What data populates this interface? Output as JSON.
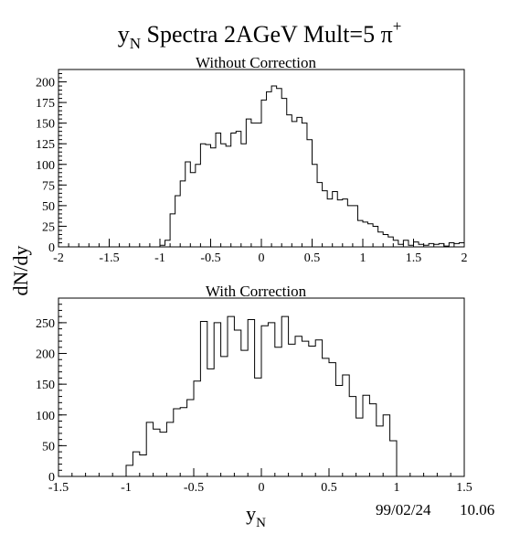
{
  "title": {
    "main": "y",
    "main_sub": "N",
    "main_rest": " Spectra 2AGeV Mult=5 π",
    "main_sup": "+"
  },
  "ylabel": "dN/dy",
  "xlabel": {
    "main": "y",
    "sub": "N"
  },
  "stamp": {
    "date": "99/02/24",
    "time": "10.06"
  },
  "chart_data": [
    {
      "type": "bar",
      "title": "Without Correction",
      "xlim": [
        -2,
        2
      ],
      "ylim": [
        0,
        215
      ],
      "xticks": [
        -2,
        -1.5,
        -1,
        -0.5,
        0,
        0.5,
        1,
        1.5,
        2
      ],
      "yticks": [
        0,
        25,
        50,
        75,
        100,
        125,
        150,
        175,
        200
      ],
      "bin_width": 0.05,
      "bins": [
        {
          "x": -1.0,
          "y": 2
        },
        {
          "x": -0.95,
          "y": 8
        },
        {
          "x": -0.9,
          "y": 40
        },
        {
          "x": -0.85,
          "y": 62
        },
        {
          "x": -0.8,
          "y": 80
        },
        {
          "x": -0.75,
          "y": 103
        },
        {
          "x": -0.7,
          "y": 90
        },
        {
          "x": -0.65,
          "y": 100
        },
        {
          "x": -0.6,
          "y": 125
        },
        {
          "x": -0.55,
          "y": 124
        },
        {
          "x": -0.5,
          "y": 120
        },
        {
          "x": -0.45,
          "y": 138
        },
        {
          "x": -0.4,
          "y": 125
        },
        {
          "x": -0.35,
          "y": 122
        },
        {
          "x": -0.3,
          "y": 138
        },
        {
          "x": -0.25,
          "y": 140
        },
        {
          "x": -0.2,
          "y": 125
        },
        {
          "x": -0.15,
          "y": 155
        },
        {
          "x": -0.1,
          "y": 150
        },
        {
          "x": -0.05,
          "y": 150
        },
        {
          "x": 0.0,
          "y": 178
        },
        {
          "x": 0.05,
          "y": 188
        },
        {
          "x": 0.1,
          "y": 195
        },
        {
          "x": 0.15,
          "y": 192
        },
        {
          "x": 0.2,
          "y": 180
        },
        {
          "x": 0.25,
          "y": 160
        },
        {
          "x": 0.3,
          "y": 152
        },
        {
          "x": 0.35,
          "y": 157
        },
        {
          "x": 0.4,
          "y": 150
        },
        {
          "x": 0.45,
          "y": 130
        },
        {
          "x": 0.5,
          "y": 100
        },
        {
          "x": 0.55,
          "y": 78
        },
        {
          "x": 0.6,
          "y": 68
        },
        {
          "x": 0.65,
          "y": 58
        },
        {
          "x": 0.7,
          "y": 67
        },
        {
          "x": 0.75,
          "y": 57
        },
        {
          "x": 0.8,
          "y": 58
        },
        {
          "x": 0.85,
          "y": 50
        },
        {
          "x": 0.9,
          "y": 50
        },
        {
          "x": 0.95,
          "y": 32
        },
        {
          "x": 1.0,
          "y": 30
        },
        {
          "x": 1.05,
          "y": 28
        },
        {
          "x": 1.1,
          "y": 25
        },
        {
          "x": 1.15,
          "y": 18
        },
        {
          "x": 1.2,
          "y": 15
        },
        {
          "x": 1.25,
          "y": 12
        },
        {
          "x": 1.3,
          "y": 8
        },
        {
          "x": 1.35,
          "y": 3
        },
        {
          "x": 1.4,
          "y": 8
        },
        {
          "x": 1.45,
          "y": 2
        },
        {
          "x": 1.5,
          "y": 6
        },
        {
          "x": 1.55,
          "y": 3
        },
        {
          "x": 1.6,
          "y": 2
        },
        {
          "x": 1.65,
          "y": 4
        },
        {
          "x": 1.7,
          "y": 3
        },
        {
          "x": 1.75,
          "y": 4
        },
        {
          "x": 1.8,
          "y": 1
        },
        {
          "x": 1.85,
          "y": 5
        },
        {
          "x": 1.9,
          "y": 4
        },
        {
          "x": 1.95,
          "y": 5
        }
      ]
    },
    {
      "type": "bar",
      "title": "With Correction",
      "xlim": [
        -1.5,
        1.5
      ],
      "ylim": [
        0,
        290
      ],
      "xticks": [
        -1.5,
        -1,
        -0.5,
        0,
        0.5,
        1,
        1.5
      ],
      "yticks": [
        0,
        50,
        100,
        150,
        200,
        250
      ],
      "bin_width": 0.05,
      "bins": [
        {
          "x": -1.0,
          "y": 18
        },
        {
          "x": -0.95,
          "y": 40
        },
        {
          "x": -0.9,
          "y": 35
        },
        {
          "x": -0.85,
          "y": 88
        },
        {
          "x": -0.8,
          "y": 77
        },
        {
          "x": -0.75,
          "y": 72
        },
        {
          "x": -0.7,
          "y": 88
        },
        {
          "x": -0.65,
          "y": 110
        },
        {
          "x": -0.6,
          "y": 112
        },
        {
          "x": -0.55,
          "y": 125
        },
        {
          "x": -0.5,
          "y": 155
        },
        {
          "x": -0.45,
          "y": 252
        },
        {
          "x": -0.4,
          "y": 175
        },
        {
          "x": -0.35,
          "y": 250
        },
        {
          "x": -0.3,
          "y": 195
        },
        {
          "x": -0.25,
          "y": 260
        },
        {
          "x": -0.2,
          "y": 238
        },
        {
          "x": -0.15,
          "y": 205
        },
        {
          "x": -0.1,
          "y": 255
        },
        {
          "x": -0.05,
          "y": 160
        },
        {
          "x": 0.0,
          "y": 245
        },
        {
          "x": 0.05,
          "y": 250
        },
        {
          "x": 0.1,
          "y": 210
        },
        {
          "x": 0.15,
          "y": 260
        },
        {
          "x": 0.2,
          "y": 215
        },
        {
          "x": 0.25,
          "y": 228
        },
        {
          "x": 0.3,
          "y": 220
        },
        {
          "x": 0.35,
          "y": 212
        },
        {
          "x": 0.4,
          "y": 222
        },
        {
          "x": 0.45,
          "y": 192
        },
        {
          "x": 0.5,
          "y": 185
        },
        {
          "x": 0.55,
          "y": 148
        },
        {
          "x": 0.6,
          "y": 165
        },
        {
          "x": 0.65,
          "y": 130
        },
        {
          "x": 0.7,
          "y": 95
        },
        {
          "x": 0.75,
          "y": 132
        },
        {
          "x": 0.8,
          "y": 118
        },
        {
          "x": 0.85,
          "y": 82
        },
        {
          "x": 0.9,
          "y": 100
        },
        {
          "x": 0.95,
          "y": 58
        }
      ]
    }
  ]
}
